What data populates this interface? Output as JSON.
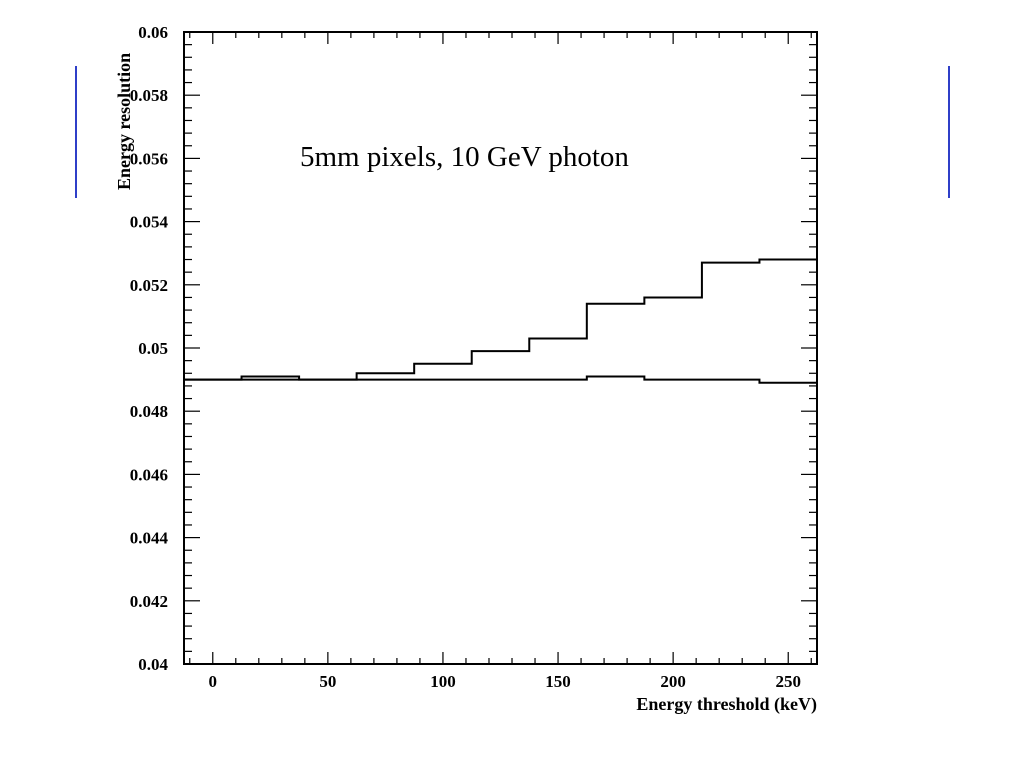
{
  "chart_data": {
    "type": "line",
    "step": true,
    "annotation": "5mm pixels, 10 GeV photon",
    "xlabel": "Energy threshold (keV)",
    "ylabel": "Energy resolution",
    "xlim": [
      -12.5,
      262.5
    ],
    "ylim": [
      0.04,
      0.06
    ],
    "x_ticks": [
      0,
      50,
      100,
      150,
      200,
      250
    ],
    "y_ticks": [
      "0.04",
      "0.042",
      "0.044",
      "0.046",
      "0.048",
      "0.05",
      "0.052",
      "0.054",
      "0.056",
      "0.058",
      "0.06"
    ],
    "x_bin_edges": [
      -12.5,
      12.5,
      37.5,
      62.5,
      87.5,
      112.5,
      137.5,
      162.5,
      187.5,
      212.5,
      237.5,
      262.5
    ],
    "series": [
      {
        "values": [
          0.049,
          0.0491,
          0.049,
          0.0492,
          0.0495,
          0.0499,
          0.0503,
          0.0514,
          0.0516,
          0.0527,
          0.0528
        ],
        "color": "#000000"
      },
      {
        "values": [
          0.049,
          0.049,
          0.049,
          0.049,
          0.049,
          0.049,
          0.049,
          0.0491,
          0.049,
          0.049,
          0.0489
        ],
        "color": "#000000"
      }
    ],
    "grid": false,
    "frame_color": "#000000",
    "accent_color": "#2f3fc8"
  }
}
